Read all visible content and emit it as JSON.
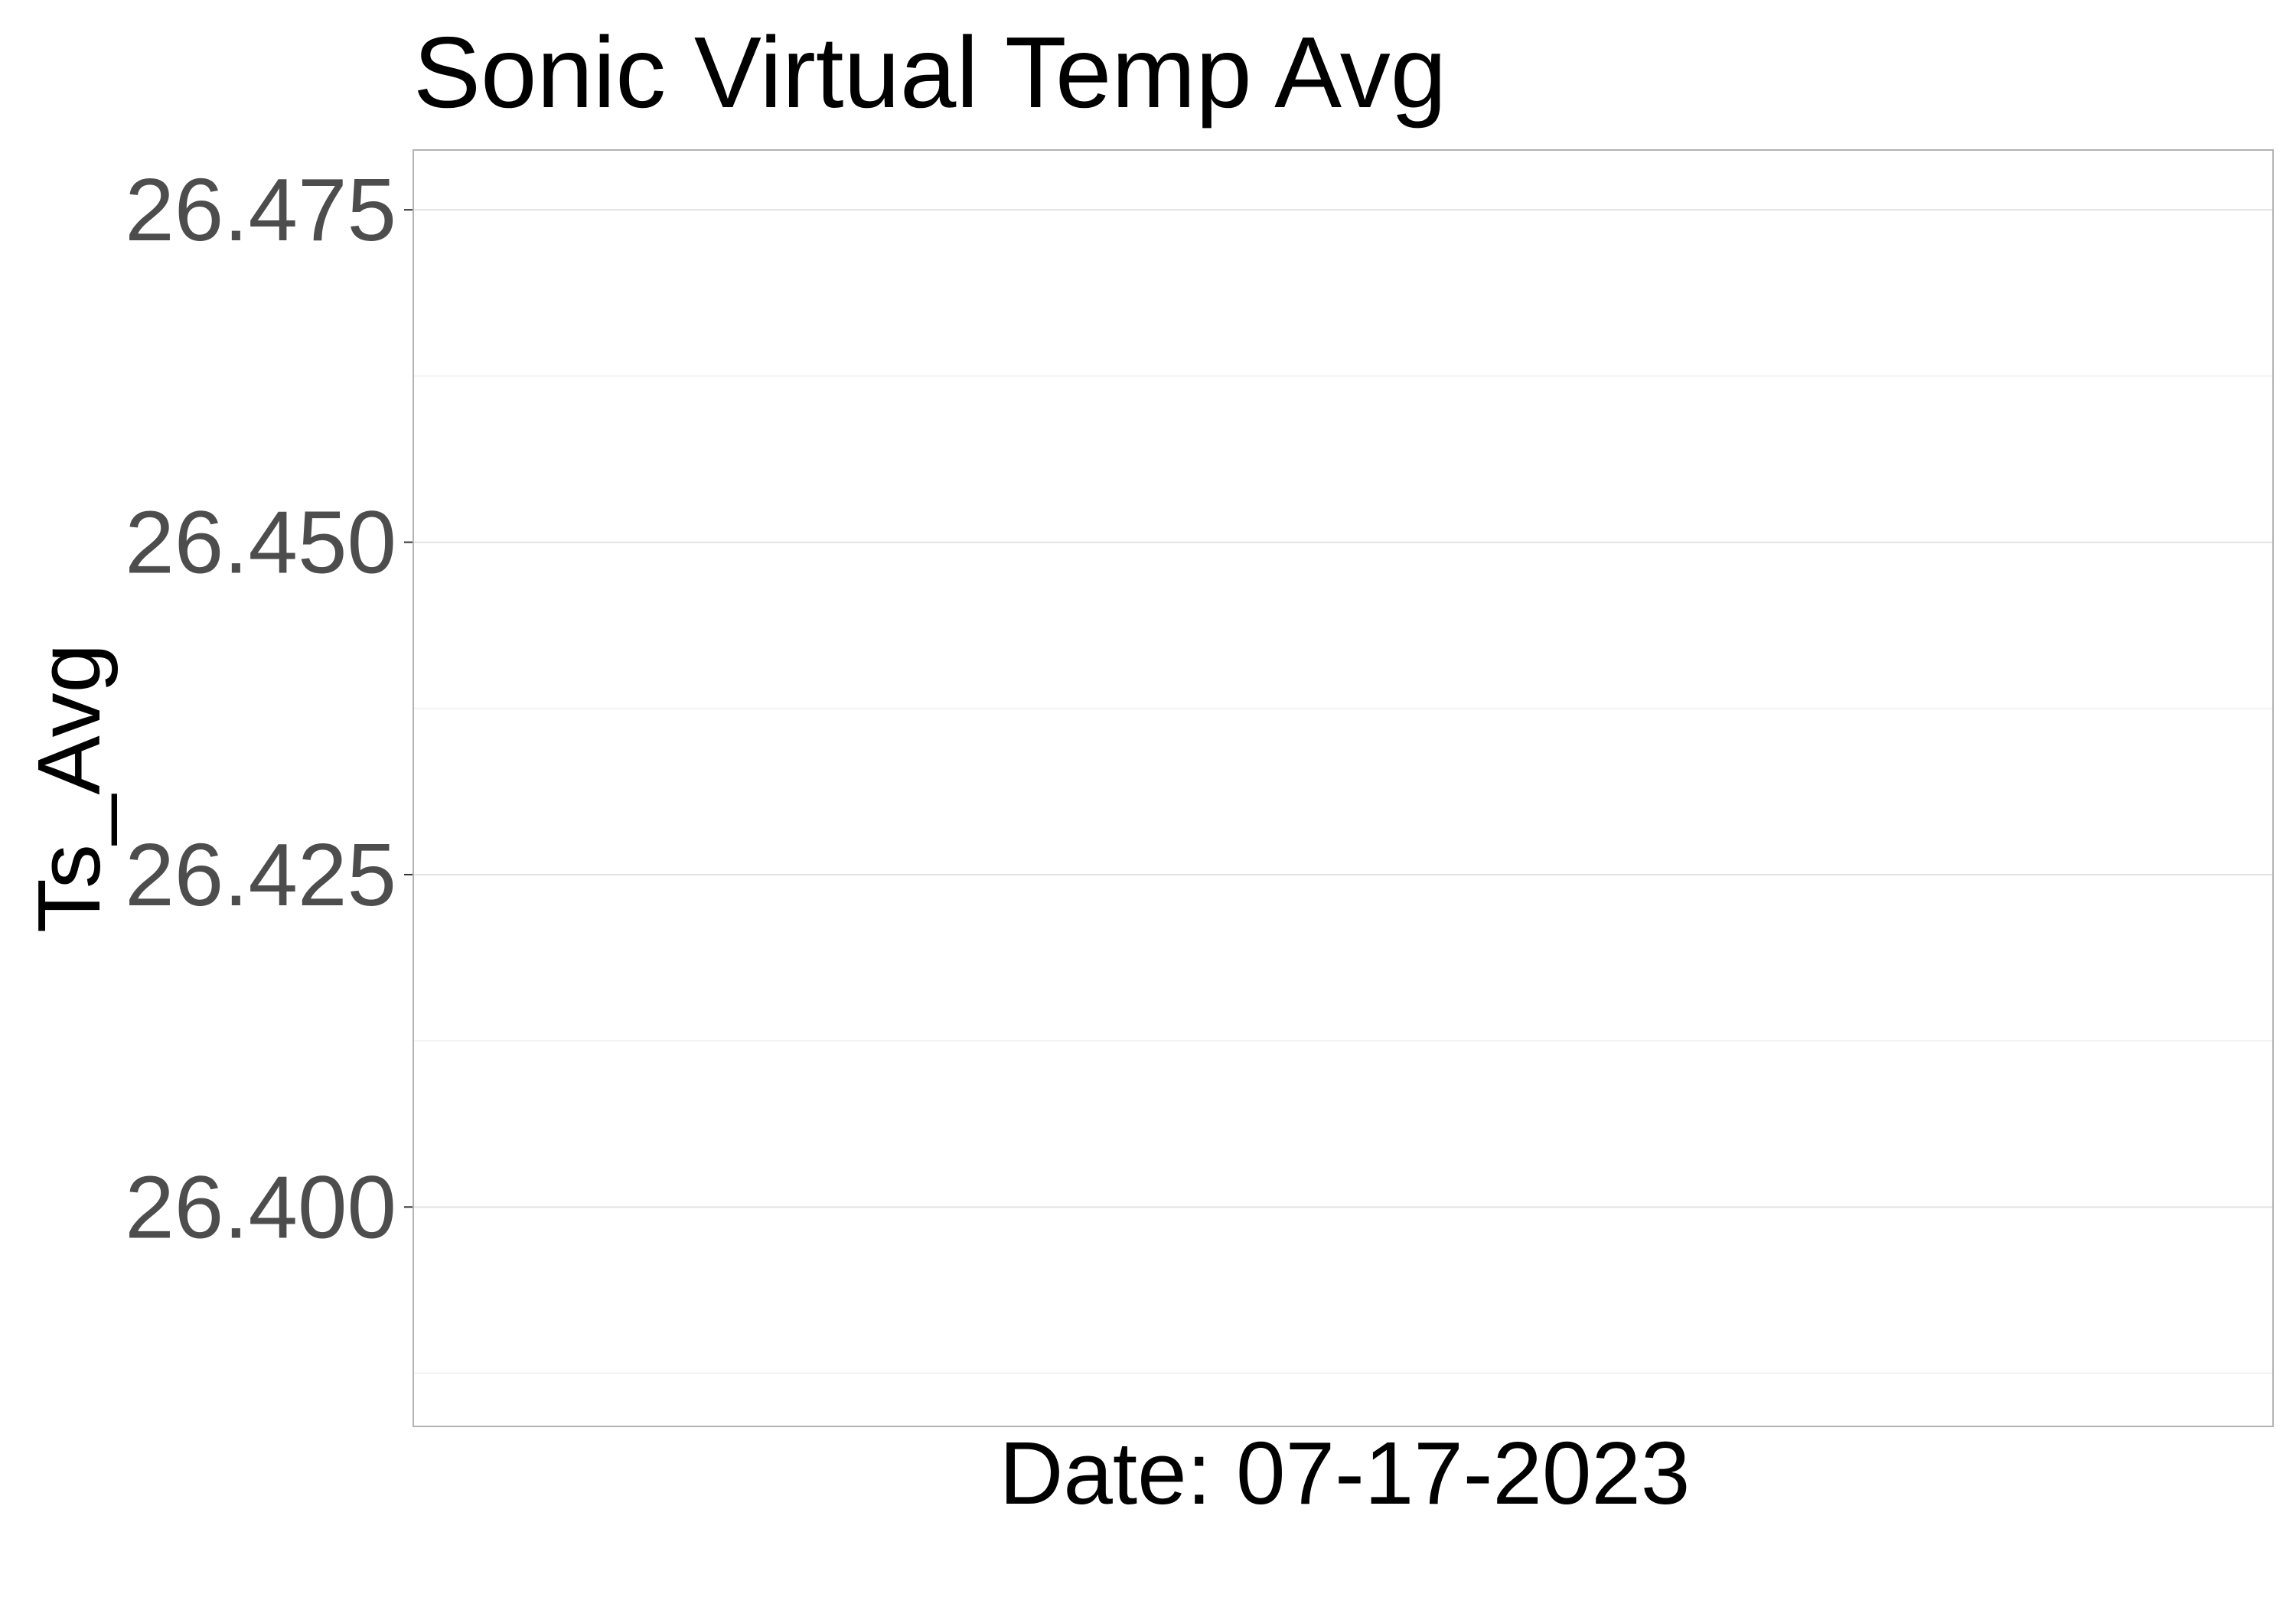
{
  "chart_data": {
    "type": "line",
    "title": "Sonic Virtual Temp Avg",
    "xlabel": "Date: 07-17-2023",
    "ylabel": "Ts_Avg",
    "ylim": [
      26.3835,
      26.4795
    ],
    "y_ticks": [
      {
        "value": 26.4,
        "label": "26.400"
      },
      {
        "value": 26.425,
        "label": "26.425"
      },
      {
        "value": 26.45,
        "label": "26.450"
      },
      {
        "value": 26.475,
        "label": "26.475"
      }
    ],
    "y_minor_ticks": [
      26.3875,
      26.4125,
      26.4375,
      26.4625
    ],
    "series": [],
    "grid": true,
    "legend": "none",
    "colors": {
      "grid_major": "#e3e3e3",
      "grid_minor": "#f2f2f2",
      "panel_border": "#b3b3b3",
      "tick_text": "#4d4d4d",
      "axis_title": "#000000"
    }
  }
}
